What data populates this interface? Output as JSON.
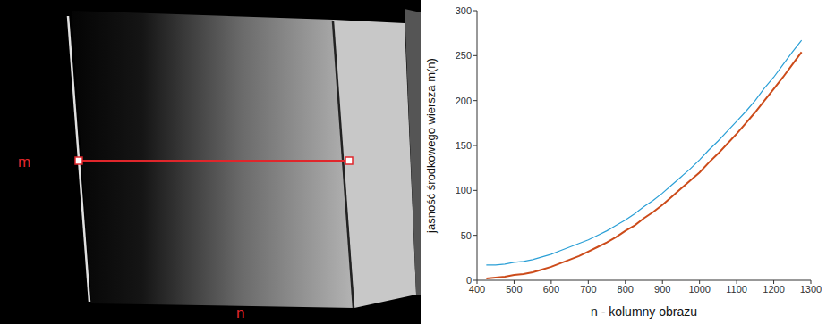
{
  "image": {
    "row_label": "m",
    "column_label": "n"
  },
  "chart_data": {
    "type": "line",
    "x_label": "n - kolumny obrazu",
    "y_label": "jasność środkowego wiersza m(n)",
    "xlim": [
      400,
      1300
    ],
    "xticks": [
      400,
      500,
      600,
      700,
      800,
      900,
      1000,
      1100,
      1200,
      1300
    ],
    "ylim": [
      0,
      300
    ],
    "yticks": [
      0,
      50,
      100,
      150,
      200,
      250,
      300
    ],
    "grid": false,
    "x": [
      425,
      450,
      475,
      500,
      525,
      550,
      575,
      600,
      625,
      650,
      675,
      700,
      725,
      750,
      775,
      800,
      825,
      850,
      875,
      900,
      925,
      950,
      975,
      1000,
      1025,
      1050,
      1075,
      1100,
      1125,
      1150,
      1175,
      1200,
      1225,
      1250,
      1275
    ],
    "series": [
      {
        "color": "#2a9fd6",
        "values": [
          17,
          17,
          18,
          20,
          21,
          23,
          26,
          29,
          33,
          37,
          41,
          45,
          50,
          55,
          61,
          67,
          74,
          82,
          89,
          97,
          106,
          115,
          124,
          134,
          145,
          155,
          166,
          177,
          188,
          200,
          214,
          226,
          240,
          254,
          267
        ]
      },
      {
        "color": "#cc4b1a",
        "values": [
          2,
          3,
          4,
          6,
          7,
          9,
          12,
          15,
          19,
          23,
          27,
          32,
          37,
          42,
          48,
          55,
          61,
          69,
          76,
          84,
          93,
          102,
          111,
          120,
          131,
          141,
          152,
          163,
          175,
          187,
          200,
          213,
          226,
          240,
          254
        ]
      }
    ]
  }
}
